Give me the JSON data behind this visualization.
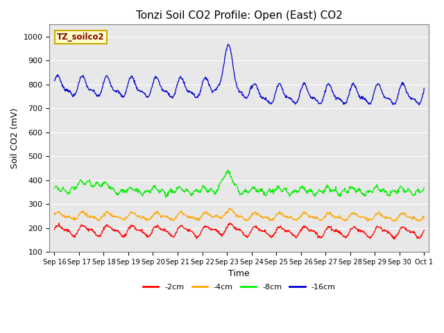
{
  "title": "Tonzi Soil CO2 Profile: Open (East) CO2",
  "ylabel": "Soil CO2 (mV)",
  "xlabel": "Time",
  "ylim": [
    100,
    1050
  ],
  "yticks": [
    100,
    200,
    300,
    400,
    500,
    600,
    700,
    800,
    900,
    1000
  ],
  "fig_bg_color": "#ffffff",
  "plot_bg_color": "#e8e8e8",
  "grid_color": "#ffffff",
  "line_colors": {
    "-2cm": "#ff0000",
    "-4cm": "#ffa500",
    "-8cm": "#00ee00",
    "-16cm": "#0000cc"
  },
  "legend_label": "TZ_soilco2",
  "legend_label_color": "#8b0000",
  "legend_box_fill": "#ffffcc",
  "legend_box_edge": "#ccaa00",
  "n_points": 900,
  "total_days": 15,
  "tick_labels": [
    "Sep 16",
    "Sep 17",
    "Sep 18",
    "Sep 19",
    "Sep 20",
    "Sep 21",
    "Sep 22",
    "Sep 23",
    "Sep 24",
    "Sep 25",
    "Sep 26",
    "Sep 27",
    "Sep 28",
    "Sep 29",
    "Sep 30",
    "Oct 1"
  ],
  "title_fontsize": 11,
  "label_fontsize": 9,
  "tick_fontsize": 7,
  "legend_fontsize": 8
}
